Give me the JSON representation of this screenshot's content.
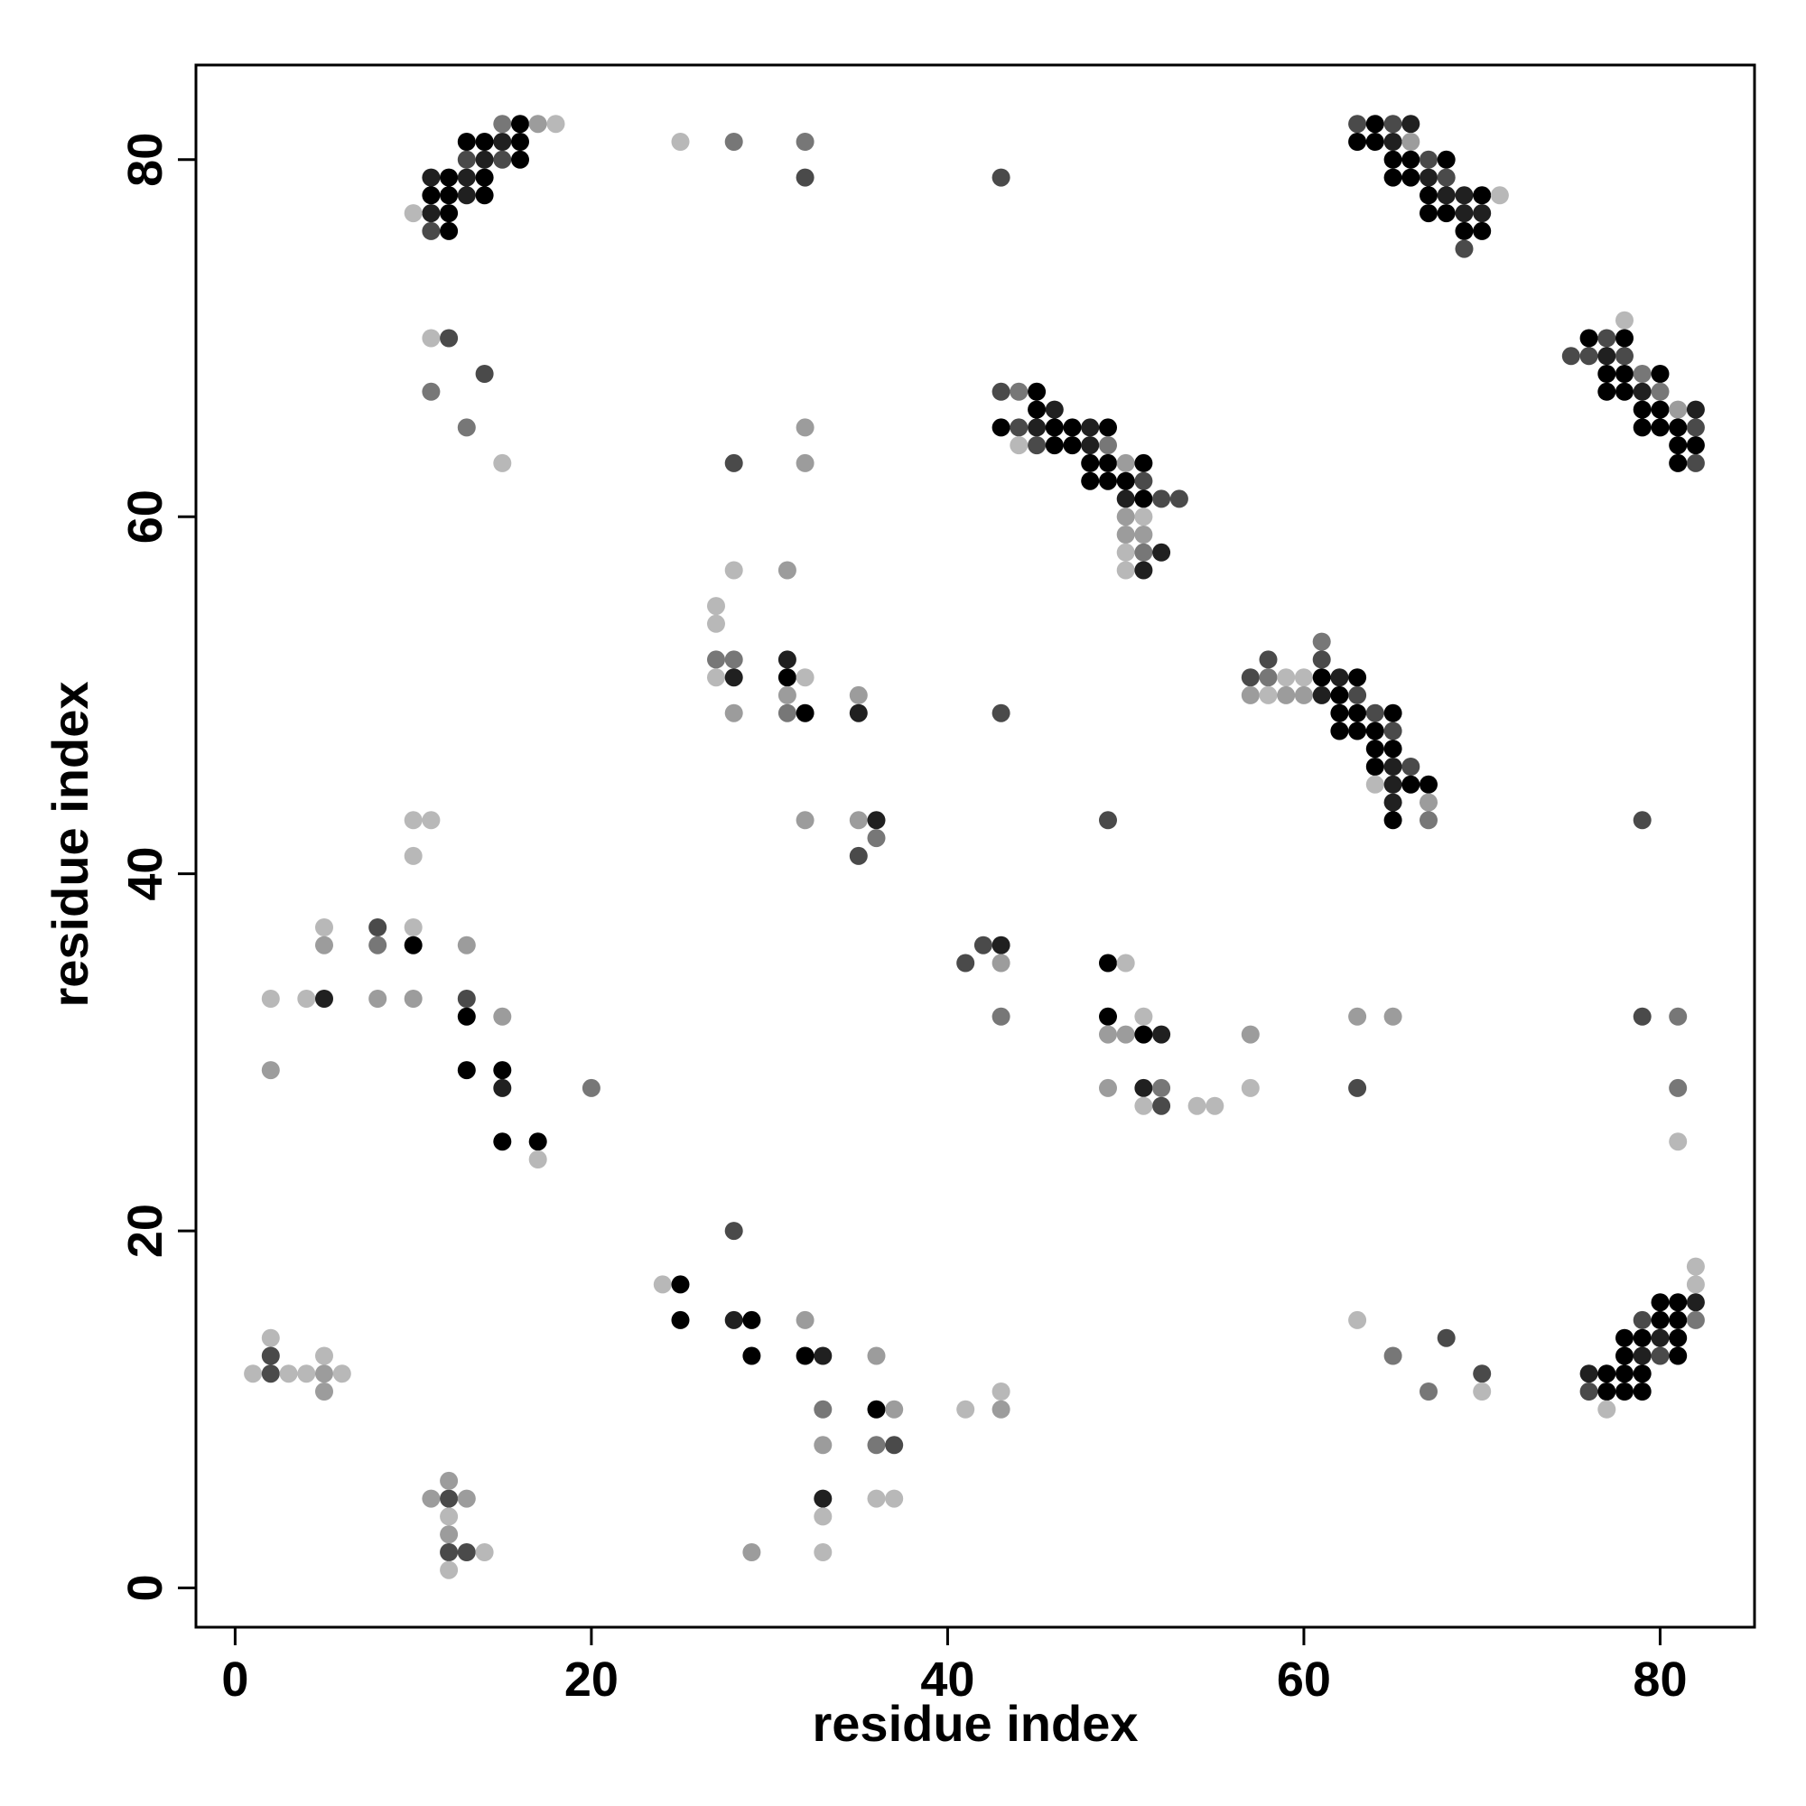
{
  "chart_data": {
    "type": "scatter",
    "xlabel": "residue index",
    "ylabel": "residue index",
    "xlim": [
      -2.2,
      85.3
    ],
    "ylim": [
      -2.2,
      85.3
    ],
    "xticks": [
      "0",
      "20",
      "40",
      "60",
      "80"
    ],
    "yticks": [
      "0",
      "20",
      "40",
      "60",
      "80"
    ],
    "xtick_values": [
      0,
      20,
      40,
      60,
      80
    ],
    "ytick_values": [
      0,
      20,
      40,
      60,
      80
    ],
    "grid": false,
    "legend": "none",
    "shades": [
      "#000000",
      "#202020",
      "#4a4a4a",
      "#777777",
      "#9c9c9c",
      "#b8b8b8"
    ],
    "points": [
      [
        11,
        79,
        1
      ],
      [
        12,
        79,
        0
      ],
      [
        13,
        79,
        1
      ],
      [
        14,
        79,
        0
      ],
      [
        11,
        78,
        0
      ],
      [
        12,
        78,
        0
      ],
      [
        13,
        78,
        1
      ],
      [
        14,
        78,
        0
      ],
      [
        11,
        77,
        1
      ],
      [
        12,
        77,
        0
      ],
      [
        10,
        77,
        5
      ],
      [
        11,
        76,
        2
      ],
      [
        12,
        76,
        0
      ],
      [
        13,
        81,
        0
      ],
      [
        14,
        81,
        0
      ],
      [
        15,
        81,
        1
      ],
      [
        16,
        81,
        0
      ],
      [
        15,
        82,
        3
      ],
      [
        16,
        82,
        0
      ],
      [
        17,
        82,
        4
      ],
      [
        18,
        82,
        5
      ],
      [
        13,
        80,
        2
      ],
      [
        14,
        80,
        1
      ],
      [
        15,
        80,
        2
      ],
      [
        16,
        80,
        0
      ],
      [
        25,
        81,
        5
      ],
      [
        28,
        81,
        3
      ],
      [
        32,
        81,
        3
      ],
      [
        32,
        79,
        2
      ],
      [
        43,
        79,
        2
      ],
      [
        63,
        82,
        2
      ],
      [
        64,
        82,
        0
      ],
      [
        65,
        82,
        2
      ],
      [
        66,
        82,
        1
      ],
      [
        63,
        81,
        0
      ],
      [
        64,
        81,
        0
      ],
      [
        65,
        81,
        1
      ],
      [
        66,
        81,
        4
      ],
      [
        65,
        80,
        0
      ],
      [
        66,
        80,
        0
      ],
      [
        67,
        80,
        2
      ],
      [
        68,
        80,
        0
      ],
      [
        65,
        79,
        0
      ],
      [
        66,
        79,
        0
      ],
      [
        67,
        79,
        1
      ],
      [
        68,
        79,
        2
      ],
      [
        67,
        78,
        0
      ],
      [
        68,
        78,
        1
      ],
      [
        69,
        78,
        1
      ],
      [
        70,
        78,
        0
      ],
      [
        71,
        78,
        5
      ],
      [
        67,
        77,
        0
      ],
      [
        68,
        77,
        0
      ],
      [
        69,
        77,
        1
      ],
      [
        70,
        77,
        1
      ],
      [
        69,
        76,
        0
      ],
      [
        70,
        76,
        0
      ],
      [
        69,
        75,
        2
      ],
      [
        11,
        70,
        5
      ],
      [
        12,
        70,
        2
      ],
      [
        14,
        68,
        2
      ],
      [
        11,
        67,
        3
      ],
      [
        13,
        65,
        3
      ],
      [
        15,
        63,
        5
      ],
      [
        28,
        63,
        2
      ],
      [
        32,
        65,
        4
      ],
      [
        32,
        63,
        4
      ],
      [
        78,
        71,
        5
      ],
      [
        76,
        70,
        0
      ],
      [
        77,
        70,
        2
      ],
      [
        78,
        70,
        0
      ],
      [
        75,
        69,
        2
      ],
      [
        76,
        69,
        2
      ],
      [
        77,
        69,
        1
      ],
      [
        78,
        69,
        2
      ],
      [
        77,
        68,
        0
      ],
      [
        78,
        68,
        0
      ],
      [
        79,
        68,
        3
      ],
      [
        80,
        68,
        0
      ],
      [
        77,
        67,
        0
      ],
      [
        78,
        67,
        0
      ],
      [
        79,
        67,
        1
      ],
      [
        80,
        67,
        3
      ],
      [
        79,
        66,
        0
      ],
      [
        80,
        66,
        0
      ],
      [
        81,
        66,
        4
      ],
      [
        82,
        66,
        1
      ],
      [
        79,
        65,
        0
      ],
      [
        80,
        65,
        0
      ],
      [
        81,
        65,
        0
      ],
      [
        82,
        65,
        2
      ],
      [
        81,
        64,
        0
      ],
      [
        82,
        64,
        0
      ],
      [
        81,
        63,
        0
      ],
      [
        82,
        63,
        2
      ],
      [
        43,
        67,
        2
      ],
      [
        44,
        67,
        3
      ],
      [
        45,
        67,
        0
      ],
      [
        45,
        66,
        0
      ],
      [
        46,
        66,
        1
      ],
      [
        43,
        65,
        0
      ],
      [
        44,
        65,
        2
      ],
      [
        45,
        65,
        1
      ],
      [
        46,
        65,
        0
      ],
      [
        47,
        65,
        0
      ],
      [
        48,
        65,
        1
      ],
      [
        49,
        65,
        0
      ],
      [
        44,
        64,
        5
      ],
      [
        45,
        64,
        2
      ],
      [
        46,
        64,
        0
      ],
      [
        47,
        64,
        0
      ],
      [
        48,
        64,
        1
      ],
      [
        49,
        64,
        3
      ],
      [
        48,
        63,
        0
      ],
      [
        49,
        63,
        0
      ],
      [
        50,
        63,
        4
      ],
      [
        51,
        63,
        0
      ],
      [
        48,
        62,
        0
      ],
      [
        49,
        62,
        0
      ],
      [
        50,
        62,
        0
      ],
      [
        51,
        62,
        2
      ],
      [
        50,
        61,
        1
      ],
      [
        51,
        61,
        0
      ],
      [
        52,
        61,
        2
      ],
      [
        53,
        61,
        2
      ],
      [
        50,
        60,
        4
      ],
      [
        51,
        60,
        5
      ],
      [
        50,
        59,
        4
      ],
      [
        51,
        59,
        4
      ],
      [
        50,
        58,
        5
      ],
      [
        51,
        58,
        3
      ],
      [
        52,
        58,
        1
      ],
      [
        50,
        57,
        5
      ],
      [
        51,
        57,
        1
      ],
      [
        28,
        57,
        5
      ],
      [
        31,
        57,
        4
      ],
      [
        27,
        55,
        5
      ],
      [
        27,
        54,
        5
      ],
      [
        27,
        52,
        3
      ],
      [
        28,
        52,
        3
      ],
      [
        31,
        52,
        1
      ],
      [
        27,
        51,
        5
      ],
      [
        28,
        51,
        1
      ],
      [
        31,
        51,
        0
      ],
      [
        32,
        51,
        5
      ],
      [
        31,
        50,
        4
      ],
      [
        35,
        50,
        4
      ],
      [
        28,
        49,
        4
      ],
      [
        31,
        49,
        3
      ],
      [
        32,
        49,
        0
      ],
      [
        35,
        49,
        1
      ],
      [
        43,
        49,
        2
      ],
      [
        32,
        43,
        4
      ],
      [
        35,
        43,
        4
      ],
      [
        36,
        43,
        1
      ],
      [
        36,
        42,
        3
      ],
      [
        35,
        41,
        2
      ],
      [
        58,
        52,
        2
      ],
      [
        61,
        53,
        3
      ],
      [
        61,
        52,
        2
      ],
      [
        57,
        51,
        2
      ],
      [
        58,
        51,
        3
      ],
      [
        59,
        51,
        5
      ],
      [
        60,
        51,
        5
      ],
      [
        61,
        51,
        0
      ],
      [
        62,
        51,
        1
      ],
      [
        63,
        51,
        0
      ],
      [
        57,
        50,
        4
      ],
      [
        58,
        50,
        5
      ],
      [
        59,
        50,
        4
      ],
      [
        60,
        50,
        4
      ],
      [
        61,
        50,
        1
      ],
      [
        62,
        50,
        0
      ],
      [
        63,
        50,
        2
      ],
      [
        62,
        49,
        0
      ],
      [
        63,
        49,
        0
      ],
      [
        64,
        49,
        2
      ],
      [
        65,
        49,
        0
      ],
      [
        62,
        48,
        0
      ],
      [
        63,
        48,
        0
      ],
      [
        64,
        48,
        0
      ],
      [
        65,
        48,
        2
      ],
      [
        64,
        47,
        0
      ],
      [
        65,
        47,
        0
      ],
      [
        64,
        46,
        0
      ],
      [
        65,
        46,
        1
      ],
      [
        66,
        46,
        2
      ],
      [
        64,
        45,
        5
      ],
      [
        65,
        45,
        1
      ],
      [
        66,
        45,
        0
      ],
      [
        67,
        45,
        0
      ],
      [
        65,
        44,
        1
      ],
      [
        67,
        44,
        4
      ],
      [
        65,
        43,
        0
      ],
      [
        67,
        43,
        3
      ],
      [
        49,
        43,
        2
      ],
      [
        79,
        43,
        2
      ],
      [
        10,
        43,
        5
      ],
      [
        11,
        43,
        5
      ],
      [
        10,
        41,
        5
      ],
      [
        5,
        37,
        5
      ],
      [
        8,
        37,
        2
      ],
      [
        10,
        37,
        5
      ],
      [
        5,
        36,
        4
      ],
      [
        8,
        36,
        3
      ],
      [
        10,
        36,
        0
      ],
      [
        13,
        36,
        4
      ],
      [
        2,
        33,
        5
      ],
      [
        4,
        33,
        5
      ],
      [
        5,
        33,
        1
      ],
      [
        8,
        33,
        4
      ],
      [
        10,
        33,
        4
      ],
      [
        13,
        33,
        2
      ],
      [
        13,
        32,
        0
      ],
      [
        15,
        32,
        4
      ],
      [
        2,
        29,
        4
      ],
      [
        13,
        29,
        0
      ],
      [
        15,
        29,
        0
      ],
      [
        15,
        28,
        1
      ],
      [
        20,
        28,
        3
      ],
      [
        15,
        25,
        0
      ],
      [
        17,
        25,
        0
      ],
      [
        17,
        24,
        5
      ],
      [
        41,
        35,
        2
      ],
      [
        42,
        36,
        2
      ],
      [
        43,
        36,
        1
      ],
      [
        43,
        35,
        4
      ],
      [
        43,
        32,
        3
      ],
      [
        49,
        35,
        0
      ],
      [
        50,
        35,
        5
      ],
      [
        49,
        32,
        0
      ],
      [
        51,
        32,
        5
      ],
      [
        49,
        31,
        4
      ],
      [
        50,
        31,
        4
      ],
      [
        51,
        31,
        0
      ],
      [
        52,
        31,
        1
      ],
      [
        49,
        28,
        4
      ],
      [
        51,
        28,
        1
      ],
      [
        52,
        28,
        3
      ],
      [
        51,
        27,
        5
      ],
      [
        52,
        27,
        2
      ],
      [
        54,
        27,
        5
      ],
      [
        55,
        27,
        5
      ],
      [
        57,
        31,
        4
      ],
      [
        57,
        28,
        5
      ],
      [
        63,
        32,
        4
      ],
      [
        65,
        32,
        4
      ],
      [
        63,
        28,
        2
      ],
      [
        79,
        32,
        2
      ],
      [
        81,
        32,
        3
      ],
      [
        81,
        28,
        3
      ],
      [
        81,
        25,
        5
      ],
      [
        28,
        20,
        2
      ],
      [
        24,
        17,
        5
      ],
      [
        25,
        17,
        0
      ],
      [
        25,
        15,
        0
      ],
      [
        28,
        15,
        1
      ],
      [
        29,
        15,
        0
      ],
      [
        29,
        13,
        0
      ],
      [
        32,
        15,
        4
      ],
      [
        32,
        13,
        0
      ],
      [
        33,
        13,
        1
      ],
      [
        33,
        10,
        3
      ],
      [
        33,
        8,
        4
      ],
      [
        36,
        13,
        4
      ],
      [
        36,
        10,
        0
      ],
      [
        37,
        10,
        4
      ],
      [
        36,
        8,
        3
      ],
      [
        37,
        8,
        2
      ],
      [
        33,
        5,
        1
      ],
      [
        33,
        4,
        5
      ],
      [
        36,
        5,
        5
      ],
      [
        37,
        5,
        5
      ],
      [
        33,
        2,
        5
      ],
      [
        29,
        2,
        4
      ],
      [
        41,
        10,
        5
      ],
      [
        43,
        11,
        5
      ],
      [
        43,
        10,
        4
      ],
      [
        2,
        14,
        5
      ],
      [
        2,
        13,
        2
      ],
      [
        1,
        12,
        5
      ],
      [
        2,
        12,
        2
      ],
      [
        3,
        12,
        5
      ],
      [
        4,
        12,
        5
      ],
      [
        5,
        12,
        4
      ],
      [
        6,
        12,
        5
      ],
      [
        5,
        13,
        5
      ],
      [
        5,
        11,
        4
      ],
      [
        11,
        5,
        4
      ],
      [
        12,
        5,
        2
      ],
      [
        13,
        5,
        4
      ],
      [
        12,
        6,
        4
      ],
      [
        12,
        4,
        5
      ],
      [
        12,
        3,
        4
      ],
      [
        12,
        2,
        2
      ],
      [
        13,
        2,
        2
      ],
      [
        14,
        2,
        5
      ],
      [
        12,
        1,
        5
      ],
      [
        82,
        18,
        5
      ],
      [
        82,
        17,
        5
      ],
      [
        80,
        16,
        0
      ],
      [
        81,
        16,
        0
      ],
      [
        82,
        16,
        1
      ],
      [
        79,
        15,
        2
      ],
      [
        80,
        15,
        0
      ],
      [
        81,
        15,
        0
      ],
      [
        82,
        15,
        3
      ],
      [
        78,
        14,
        0
      ],
      [
        79,
        14,
        0
      ],
      [
        80,
        14,
        1
      ],
      [
        81,
        14,
        0
      ],
      [
        78,
        13,
        0
      ],
      [
        79,
        13,
        1
      ],
      [
        80,
        13,
        2
      ],
      [
        81,
        13,
        0
      ],
      [
        76,
        12,
        1
      ],
      [
        77,
        12,
        0
      ],
      [
        78,
        12,
        0
      ],
      [
        79,
        12,
        0
      ],
      [
        76,
        11,
        2
      ],
      [
        77,
        11,
        0
      ],
      [
        78,
        11,
        0
      ],
      [
        79,
        11,
        0
      ],
      [
        77,
        10,
        5
      ],
      [
        63,
        15,
        5
      ],
      [
        65,
        13,
        3
      ],
      [
        67,
        11,
        3
      ],
      [
        68,
        14,
        2
      ],
      [
        70,
        12,
        2
      ],
      [
        70,
        11,
        5
      ]
    ]
  }
}
